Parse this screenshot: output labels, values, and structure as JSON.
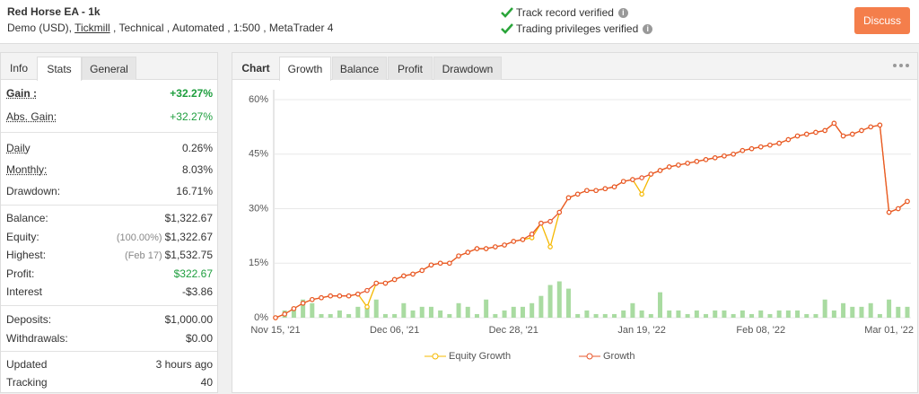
{
  "header": {
    "title": "Red Horse EA - 1k",
    "subtitle_parts": [
      "Demo (USD), ",
      "Tickmill",
      " , Technical , Automated , 1:500 , MetaTrader 4"
    ],
    "verified": [
      "Track record verified",
      "Trading privileges verified"
    ],
    "button": "Discuss"
  },
  "left_tabs": [
    "Info",
    "Stats",
    "General"
  ],
  "left_active_tab": 1,
  "stats": [
    [
      {
        "label": "Gain :",
        "value": "+32.27%",
        "color": "#1e9e3e",
        "bold": true,
        "underline": true
      },
      {
        "label": "Abs. Gain:",
        "value": "+32.27%",
        "color": "#1e9e3e",
        "underline": true
      }
    ],
    [
      {
        "label": "Daily",
        "value": "0.26%",
        "underline": true
      },
      {
        "label": "Monthly:",
        "value": "8.03%",
        "underline": true
      },
      {
        "label": "Drawdown:",
        "value": "16.71%"
      }
    ],
    [
      {
        "label": "Balance:",
        "value": "$1,322.67"
      },
      {
        "label": "Equity:",
        "note": "(100.00%)",
        "value": "$1,322.67"
      },
      {
        "label": "Highest:",
        "note": "(Feb 17)",
        "value": "$1,532.75"
      },
      {
        "label": "Profit:",
        "value": "$322.67",
        "color": "#1e9e3e"
      },
      {
        "label": "Interest",
        "value": "-$3.86"
      }
    ],
    [
      {
        "label": "Deposits:",
        "value": "$1,000.00"
      },
      {
        "label": "Withdrawals:",
        "value": "$0.00"
      }
    ],
    [
      {
        "label": "Updated",
        "value": "3 hours ago"
      },
      {
        "label": "Tracking",
        "value": "40"
      }
    ]
  ],
  "chart_tabs": [
    "Chart",
    "Growth",
    "Balance",
    "Profit",
    "Drawdown"
  ],
  "chart_active_tab": 1,
  "chart_data": {
    "type": "line",
    "categories": [
      "Nov 15, '21",
      null,
      null,
      null,
      null,
      null,
      null,
      null,
      null,
      null,
      null,
      null,
      null,
      "Dec 06, '21",
      null,
      null,
      null,
      null,
      null,
      null,
      null,
      null,
      null,
      null,
      null,
      null,
      "Dec 28, '21",
      null,
      null,
      null,
      null,
      null,
      null,
      null,
      null,
      null,
      null,
      null,
      null,
      null,
      "Jan 19, '22",
      null,
      null,
      null,
      null,
      null,
      null,
      null,
      null,
      null,
      null,
      null,
      null,
      "Feb 08, '22",
      null,
      null,
      null,
      null,
      null,
      null,
      null,
      null,
      null,
      null,
      null,
      null,
      null,
      "Mar 01, '22",
      null,
      null
    ],
    "series": [
      {
        "name": "Equity Growth",
        "color": "#f5b800",
        "values": [
          0,
          1,
          2.5,
          4,
          5,
          5.5,
          6,
          6,
          6,
          6.5,
          3,
          9.5,
          9.5,
          10.5,
          11.5,
          12,
          13,
          14.5,
          15,
          15,
          17,
          18,
          19,
          19,
          19.5,
          20,
          21,
          21.5,
          22,
          26,
          19.5,
          29,
          33,
          34,
          35,
          35,
          35.5,
          36,
          37.5,
          38,
          34,
          39.5,
          40.5,
          41.5,
          42,
          42.5,
          43,
          43.5,
          44,
          44.5,
          45,
          46,
          46.5,
          47,
          47.5,
          48,
          49,
          50,
          50.5,
          51,
          51.5,
          53.5,
          50,
          50.5,
          51.5,
          52.5,
          53,
          29,
          30,
          32
        ]
      },
      {
        "name": "Growth",
        "color": "#e8552a",
        "values": [
          0,
          1,
          2.5,
          4,
          5,
          5.5,
          6,
          6,
          6,
          6.5,
          7.5,
          9.5,
          9.5,
          10.5,
          11.5,
          12,
          13,
          14.5,
          15,
          15,
          17,
          18,
          19,
          19,
          19.5,
          20,
          21,
          21.5,
          23,
          26,
          26.5,
          29,
          33,
          34,
          35,
          35,
          35.5,
          36,
          37.5,
          38,
          38.5,
          39.5,
          40.5,
          41.5,
          42,
          42.5,
          43,
          43.5,
          44,
          44.5,
          45,
          46,
          46.5,
          47,
          47.5,
          48,
          49,
          50,
          50.5,
          51,
          51.5,
          53.5,
          50,
          50.5,
          51.5,
          52.5,
          53,
          29,
          30,
          32
        ]
      },
      {
        "type": "bar",
        "color": "#a9dba1",
        "values": [
          0,
          2,
          3,
          5,
          4,
          1,
          1,
          2,
          1,
          3,
          3,
          5,
          1,
          1,
          4,
          2,
          3,
          3,
          2,
          1,
          4,
          3,
          1,
          5,
          1,
          2,
          3,
          3,
          4,
          6,
          9,
          10,
          8,
          1,
          2,
          1,
          1,
          1,
          2,
          4,
          2,
          1,
          7,
          2,
          2,
          1,
          2,
          1,
          2,
          2,
          1,
          2,
          1,
          2,
          1,
          2,
          2,
          2,
          1,
          1,
          5,
          2,
          4,
          3,
          3,
          4,
          1,
          5,
          3,
          3
        ]
      }
    ],
    "ylim": [
      0,
      60
    ],
    "yticks": [
      {
        "value": 0,
        "label": "0%"
      },
      {
        "value": 15,
        "label": "15%"
      },
      {
        "value": 30,
        "label": "30%"
      },
      {
        "value": 45,
        "label": "45%"
      },
      {
        "value": 60,
        "label": "60%"
      }
    ],
    "grid": true
  }
}
